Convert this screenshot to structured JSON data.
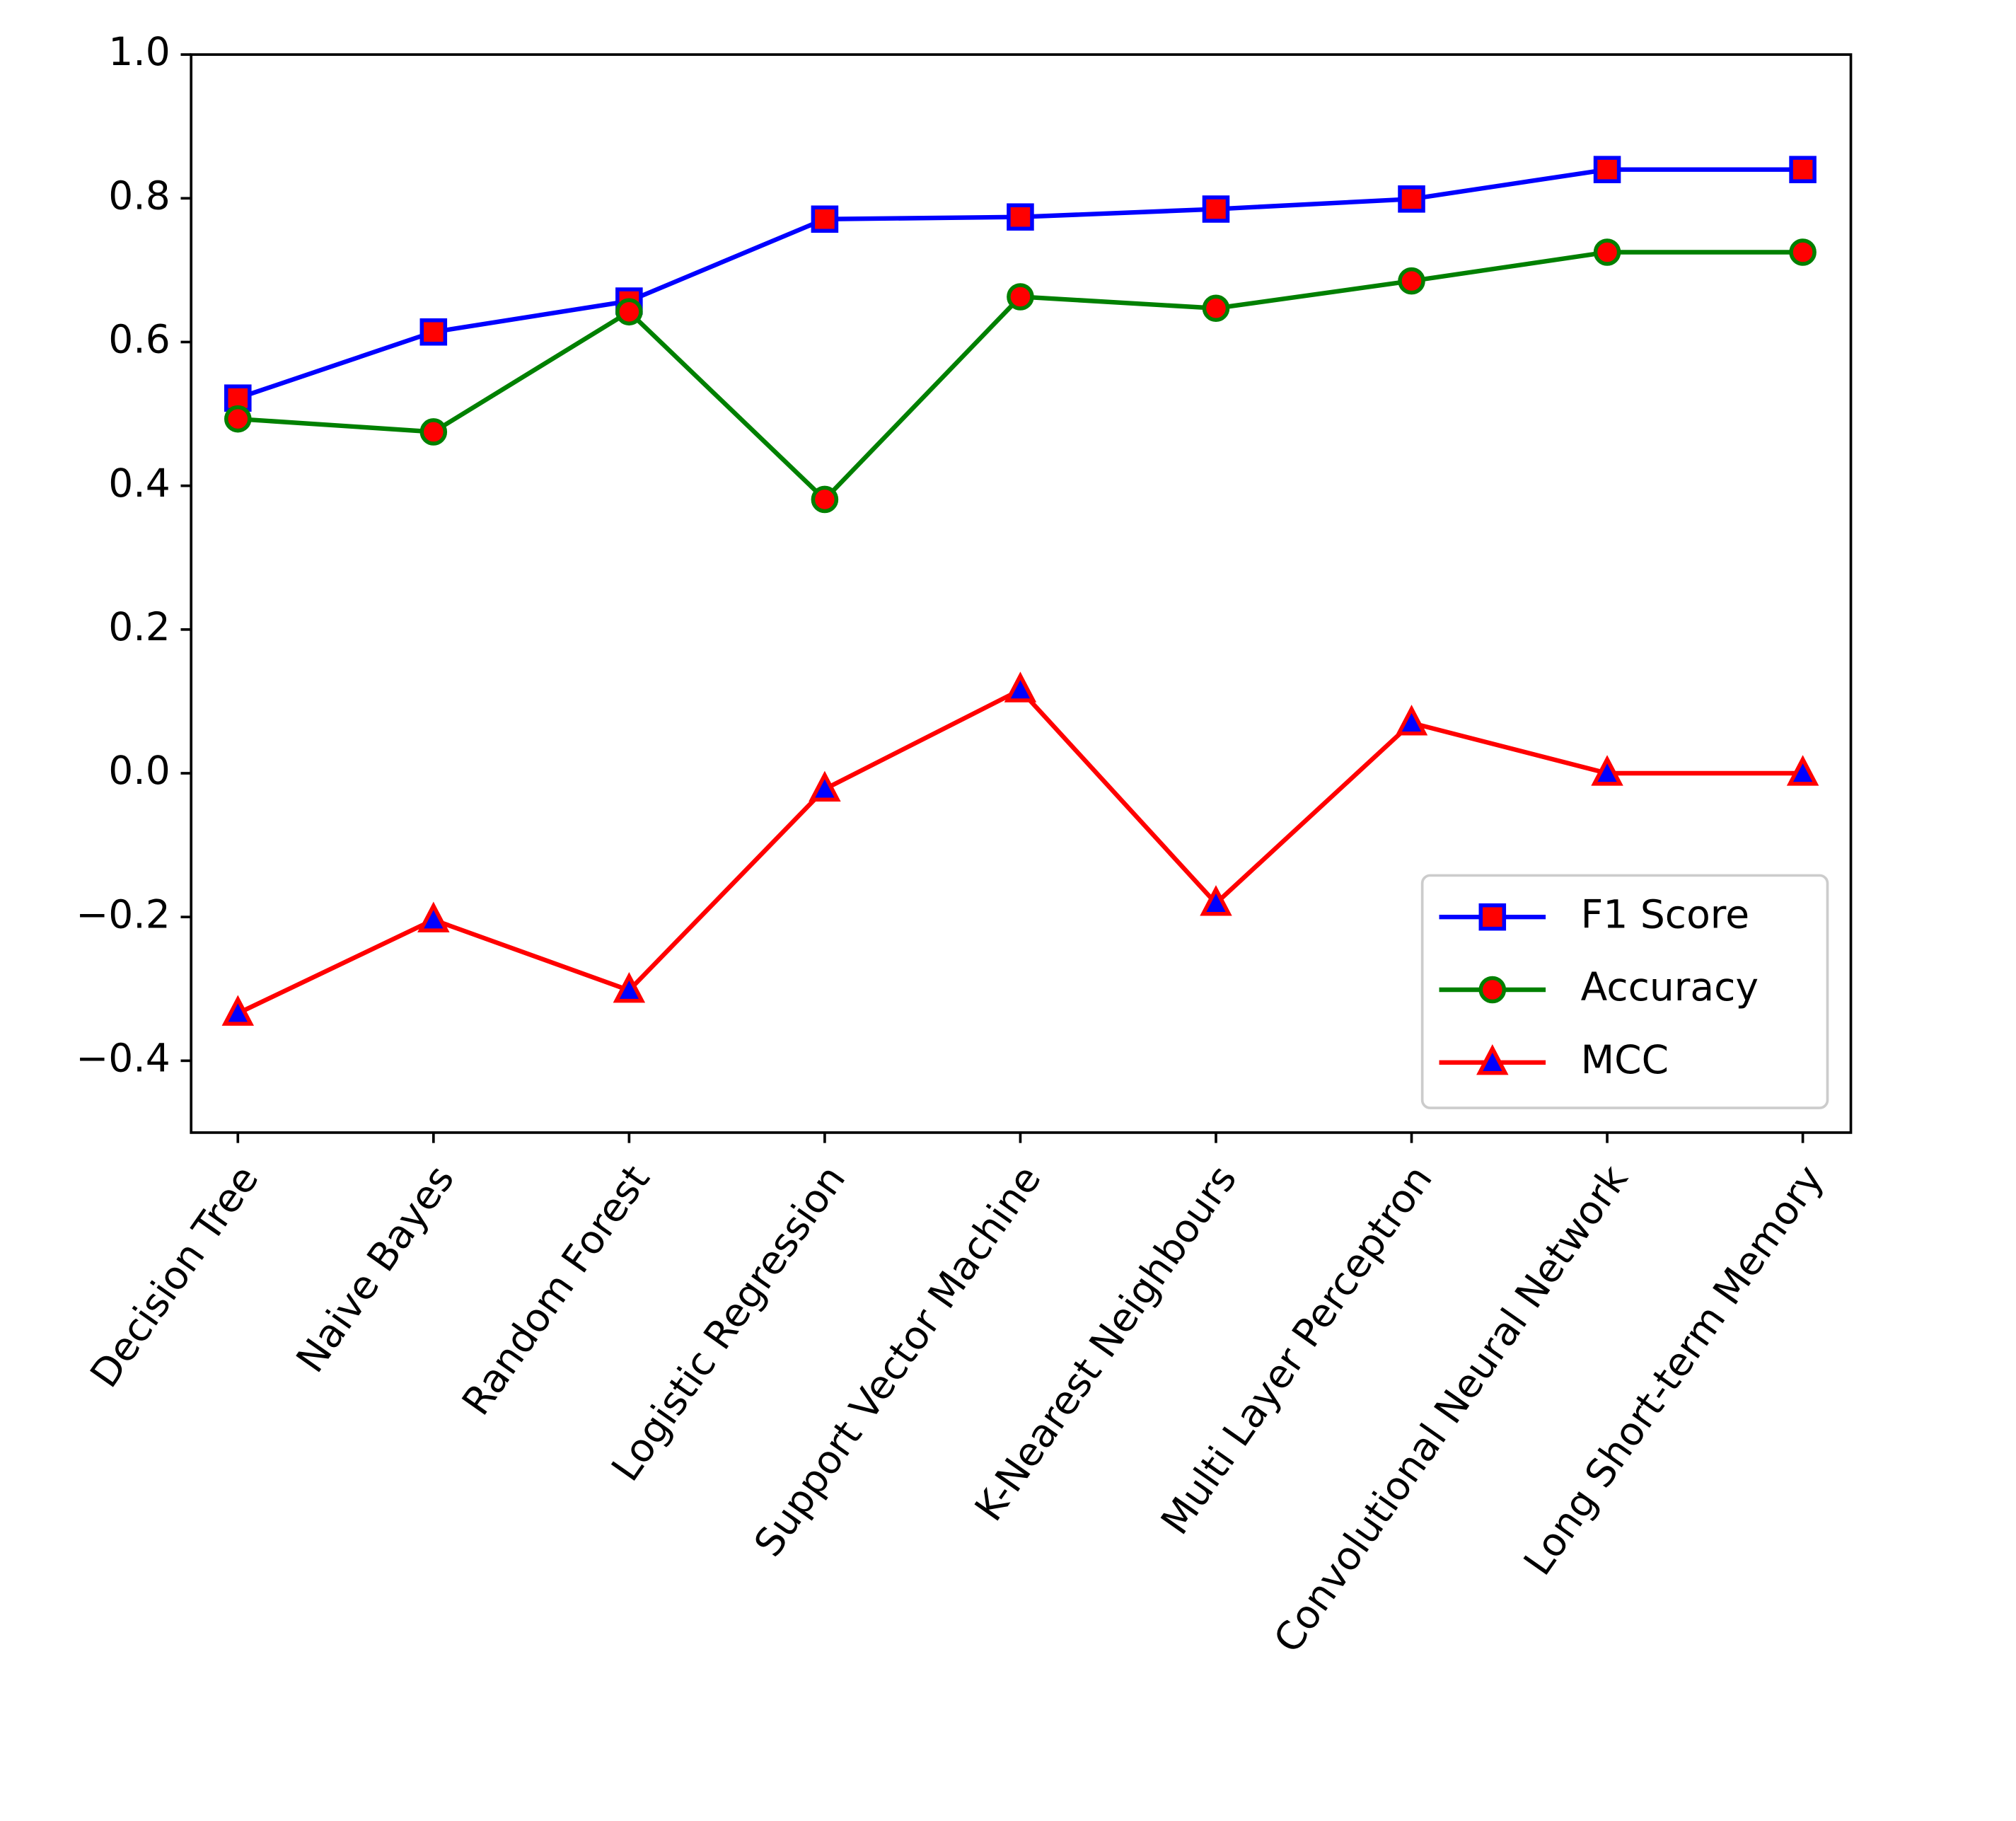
{
  "chart_data": {
    "type": "line",
    "categories": [
      "Decision Tree",
      "Naive Bayes",
      "Random Forest",
      "Logistic Regression",
      "Support Vector Machine",
      "K-Nearest Neighbours",
      "Multi Layer Perceptron",
      "Convolutional Neural Network",
      "Long Short-term Memory"
    ],
    "series": [
      {
        "name": "F1 Score",
        "color": "#0000ff",
        "marker": "square",
        "marker_face": "#ff0000",
        "marker_edge": "#0000ff",
        "values": [
          0.522,
          0.614,
          0.657,
          0.771,
          0.774,
          0.785,
          0.799,
          0.84,
          0.84
        ]
      },
      {
        "name": "Accuracy",
        "color": "#008000",
        "marker": "circle",
        "marker_face": "#ff0000",
        "marker_edge": "#008000",
        "values": [
          0.493,
          0.475,
          0.642,
          0.381,
          0.663,
          0.647,
          0.685,
          0.725,
          0.725
        ]
      },
      {
        "name": "MCC",
        "color": "#ff0000",
        "marker": "triangle",
        "marker_face": "#0000ff",
        "marker_edge": "#ff0000",
        "values": [
          -0.334,
          -0.204,
          -0.302,
          -0.022,
          0.116,
          -0.181,
          0.07,
          0,
          0
        ]
      }
    ],
    "ylim": [
      -0.5,
      1.0
    ],
    "yticks": [
      {
        "value": -0.4,
        "label": "−0.4"
      },
      {
        "value": -0.2,
        "label": "−0.2"
      },
      {
        "value": 0,
        "label": "0.0"
      },
      0.2,
      0.4,
      0.6,
      0.8,
      {
        "value": 1.0,
        "label": "1.0"
      }
    ],
    "grid": false,
    "legend": "lower right"
  }
}
